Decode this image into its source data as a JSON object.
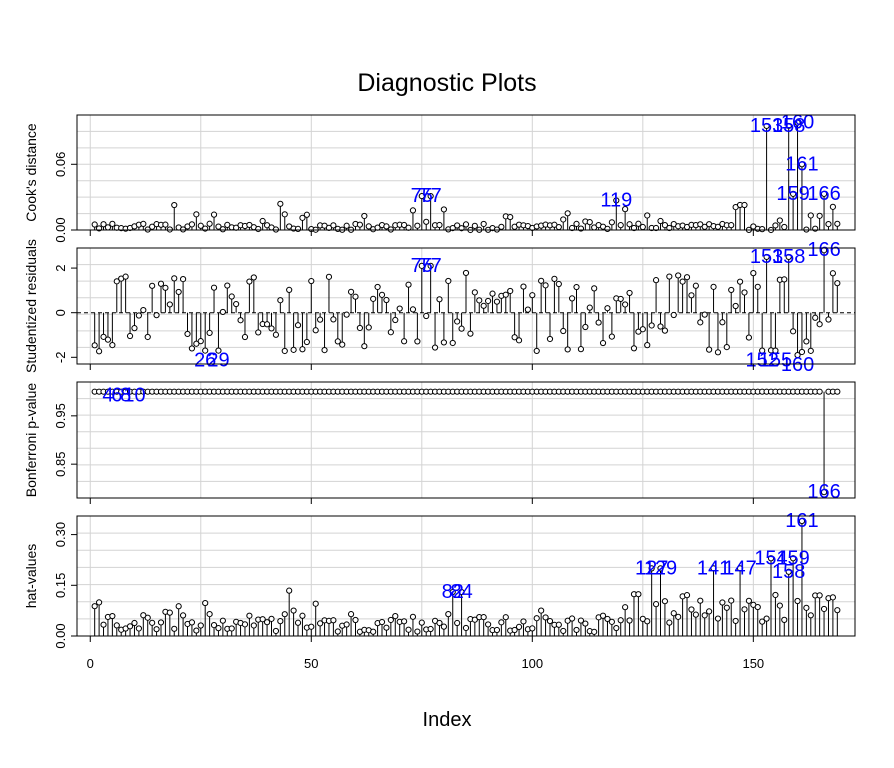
{
  "title": "Diagnostic Plots",
  "chart_data": {
    "type": "scatter",
    "title": "Diagnostic Plots",
    "xlabel": "Index",
    "xlim": [
      1,
      169
    ],
    "x_ticks": [
      "0",
      "50",
      "100",
      "150"
    ],
    "n_points": 169,
    "grid": true,
    "panels": [
      {
        "name": "cooks",
        "ylabel": "Cook's distance",
        "ylim": [
          0,
          0.105
        ],
        "y_ticks": [
          "0.00",
          "0.06"
        ],
        "baseline": 0,
        "reference_line": null,
        "label_points": [
          {
            "index": 75,
            "label": "75",
            "value": 0.031
          },
          {
            "index": 77,
            "label": "77",
            "value": 0.031
          },
          {
            "index": 119,
            "label": "119",
            "value": 0.027
          },
          {
            "index": 153,
            "label": "153",
            "value": 0.095
          },
          {
            "index": 158,
            "label": "158",
            "value": 0.095
          },
          {
            "index": 159,
            "label": "159",
            "value": 0.033
          },
          {
            "index": 160,
            "label": "160",
            "value": 0.098
          },
          {
            "index": 161,
            "label": "161",
            "value": 0.06
          },
          {
            "index": 166,
            "label": "166",
            "value": 0.033
          }
        ]
      },
      {
        "name": "studentized",
        "ylabel": "Studentized residuals",
        "ylim": [
          -2.3,
          2.9
        ],
        "y_ticks": [
          "-2",
          "0",
          "2"
        ],
        "baseline": 0,
        "reference_line": 0,
        "label_points": [
          {
            "index": 26,
            "label": "26",
            "value": -1.7
          },
          {
            "index": 29,
            "label": "29",
            "value": -1.7
          },
          {
            "index": 75,
            "label": "75",
            "value": 2.1
          },
          {
            "index": 77,
            "label": "77",
            "value": 2.1
          },
          {
            "index": 152,
            "label": "152",
            "value": -1.7
          },
          {
            "index": 153,
            "label": "153",
            "value": 2.5
          },
          {
            "index": 155,
            "label": "155",
            "value": -1.7
          },
          {
            "index": 158,
            "label": "158",
            "value": 2.5
          },
          {
            "index": 160,
            "label": "160",
            "value": -1.9
          },
          {
            "index": 166,
            "label": "166",
            "value": 2.8
          }
        ]
      },
      {
        "name": "bonferroni",
        "ylabel": "Bonferroni p-value",
        "ylim": [
          0.78,
          1.02
        ],
        "y_ticks": [
          "0.85",
          "0.95"
        ],
        "baseline": 1,
        "reference_line": null,
        "label_points": [
          {
            "index": 4,
            "label": "4",
            "value": 1.0
          },
          {
            "index": 6,
            "label": "6",
            "value": 1.0
          },
          {
            "index": 8,
            "label": "8",
            "value": 1.0
          },
          {
            "index": 10,
            "label": "10",
            "value": 1.0
          },
          {
            "index": 166,
            "label": "166",
            "value": 0.792
          }
        ]
      },
      {
        "name": "hat",
        "ylabel": "hat-values",
        "ylim": [
          0,
          0.355
        ],
        "y_ticks": [
          "0.00",
          "0.15",
          "0.30"
        ],
        "baseline": 0,
        "reference_line": null,
        "label_points": [
          {
            "index": 82,
            "label": "82",
            "value": 0.13
          },
          {
            "index": 84,
            "label": "84",
            "value": 0.13
          },
          {
            "index": 127,
            "label": "127",
            "value": 0.2
          },
          {
            "index": 129,
            "label": "129",
            "value": 0.2
          },
          {
            "index": 141,
            "label": "141",
            "value": 0.2
          },
          {
            "index": 147,
            "label": "147",
            "value": 0.2
          },
          {
            "index": 154,
            "label": "154",
            "value": 0.23
          },
          {
            "index": 158,
            "label": "158",
            "value": 0.19
          },
          {
            "index": 159,
            "label": "159",
            "value": 0.23
          },
          {
            "index": 161,
            "label": "161",
            "value": 0.34
          }
        ]
      }
    ]
  }
}
